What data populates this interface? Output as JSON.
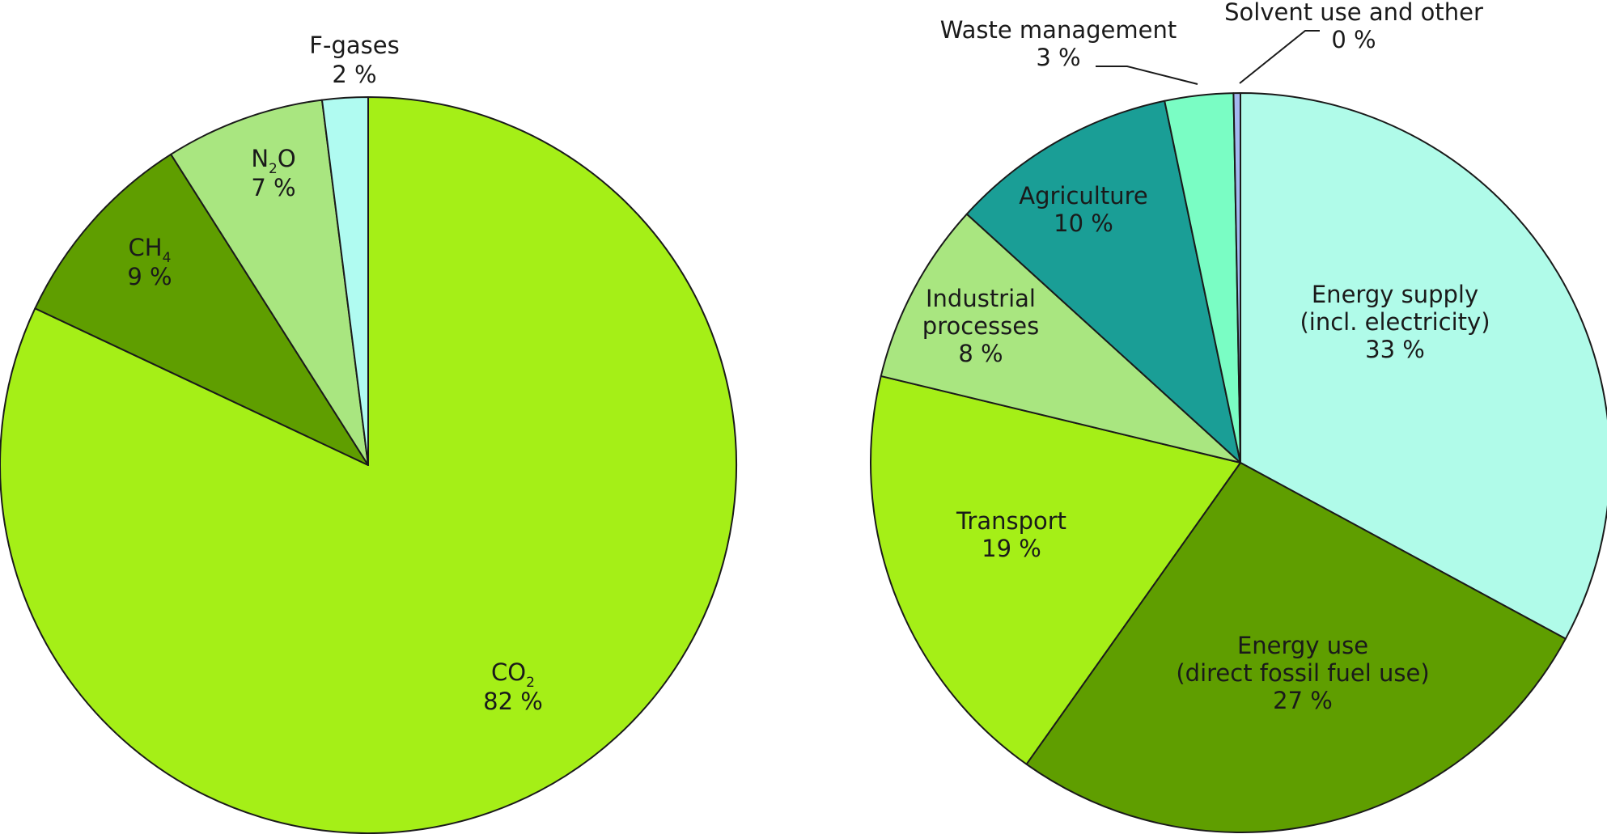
{
  "chart_data": [
    {
      "type": "pie",
      "title": "",
      "slices": [
        {
          "name": "CO2",
          "name_main": "CO",
          "name_sub": "2",
          "value": 82,
          "value_label": "82 %",
          "color": "#a5ef17"
        },
        {
          "name": "CH4",
          "name_main": "CH",
          "name_sub": "4",
          "value": 9,
          "value_label": "9 %",
          "color": "#5f9e00"
        },
        {
          "name": "N2O",
          "name_main": "N",
          "name_sub": "2",
          "name_tail": "O",
          "value": 7,
          "value_label": "7 %",
          "color": "#a9e680"
        },
        {
          "name": "F-gases",
          "name_main": "F-gases",
          "value": 2,
          "value_label": "2 %",
          "color": "#b0fbf1"
        }
      ]
    },
    {
      "type": "pie",
      "title": "",
      "slices": [
        {
          "name": "Energy supply (incl. electricity)",
          "lines": [
            "Energy supply",
            "(incl. electricity)"
          ],
          "value": 33,
          "value_label": "33 %",
          "color": "#b0fbe9"
        },
        {
          "name": "Energy use (direct fossil fuel use)",
          "lines": [
            "Energy use",
            "(direct fossil fuel use)"
          ],
          "value": 27,
          "value_label": "27 %",
          "color": "#5f9e00"
        },
        {
          "name": "Transport",
          "lines": [
            "Transport"
          ],
          "value": 19,
          "value_label": "19 %",
          "color": "#a5ef17"
        },
        {
          "name": "Industrial processes",
          "lines": [
            "Industrial",
            "processes"
          ],
          "value": 8,
          "value_label": "8 %",
          "color": "#a9e680"
        },
        {
          "name": "Agriculture",
          "lines": [
            "Agriculture"
          ],
          "value": 10,
          "value_label": "10 %",
          "color": "#1a9e96"
        },
        {
          "name": "Waste management",
          "lines": [
            "Waste management"
          ],
          "value": 3,
          "value_label": "3 %",
          "color": "#7afdc4"
        },
        {
          "name": "Solvent use and other",
          "lines": [
            "Solvent use and other"
          ],
          "value": 0.3,
          "value_label": "0 %",
          "color": "#a3b8f0"
        }
      ]
    }
  ]
}
